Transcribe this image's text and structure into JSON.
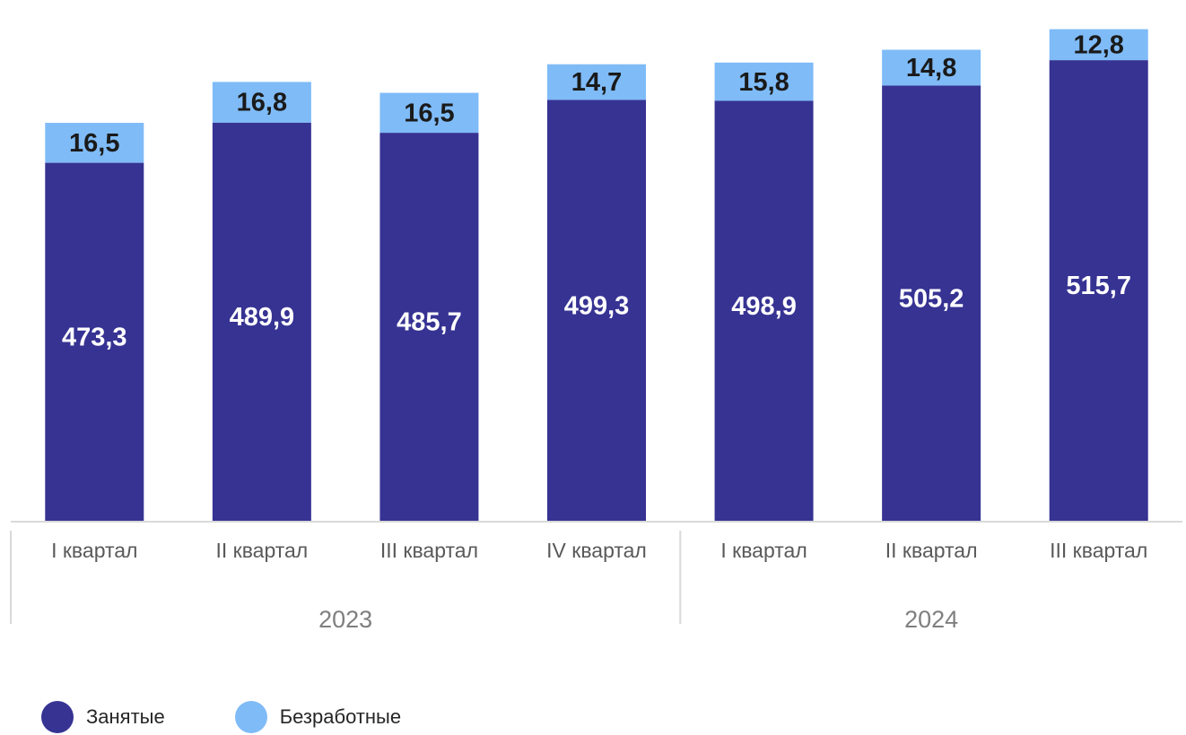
{
  "colors": {
    "employed": "#363393",
    "unemployed": "#7fbbf7",
    "axis": "#d9d9d9"
  },
  "chart_data": {
    "type": "bar",
    "stacked": true,
    "categories": [
      "I квартал",
      "II квартал",
      "III квартал",
      "IV квартал",
      "I квартал",
      "II квартал",
      "III квартал"
    ],
    "groups": [
      {
        "label": "2023",
        "count": 4
      },
      {
        "label": "2024",
        "count": 3
      }
    ],
    "series": [
      {
        "name": "Занятые",
        "color": "#363393",
        "values": [
          473.3,
          489.9,
          485.7,
          499.3,
          498.9,
          505.2,
          515.7
        ],
        "labels": [
          "473,3",
          "489,9",
          "485,7",
          "499,3",
          "498,9",
          "505,2",
          "515,7"
        ]
      },
      {
        "name": "Безработные",
        "color": "#7fbbf7",
        "values": [
          16.5,
          16.8,
          16.5,
          14.7,
          15.8,
          14.8,
          12.8
        ],
        "labels": [
          "16,5",
          "16,8",
          "16,5",
          "14,7",
          "15,8",
          "14,8",
          "12,8"
        ]
      }
    ],
    "legend_position": "bottom-left",
    "grid": false
  },
  "legend": {
    "employed": "Занятые",
    "unemployed": "Безработные"
  }
}
